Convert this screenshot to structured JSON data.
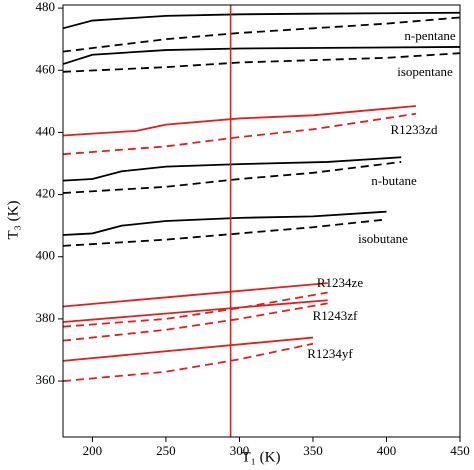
{
  "chart_data": {
    "type": "line",
    "x_label": "T₁ (K)",
    "y_label": "T₃ (K)",
    "xlim": [
      180,
      450
    ],
    "ylim": [
      342,
      481
    ],
    "xticks": [
      200,
      250,
      300,
      350,
      400,
      450
    ],
    "yticks": [
      360,
      380,
      400,
      420,
      440,
      460,
      480
    ],
    "vline": {
      "x": 294,
      "color": "#e02020"
    },
    "series": [
      {
        "name": "n-pentane",
        "color": "#000000",
        "style": "solid",
        "x": [
          180,
          200,
          250,
          300,
          350,
          450
        ],
        "values": [
          473.5,
          476,
          477.5,
          478,
          478.2,
          478.5
        ]
      },
      {
        "color": "#000000",
        "style": "dashed",
        "x": [
          180,
          250,
          300,
          350,
          400,
          450
        ],
        "values": [
          466,
          470,
          472,
          473.5,
          475,
          477
        ]
      },
      {
        "name": "isopentane",
        "color": "#000000",
        "style": "solid",
        "x": [
          180,
          200,
          250,
          300,
          450
        ],
        "values": [
          462,
          465,
          466.5,
          467,
          467.5
        ]
      },
      {
        "color": "#000000",
        "style": "dashed",
        "x": [
          180,
          250,
          300,
          400,
          450
        ],
        "values": [
          459.5,
          461,
          462.5,
          464,
          465.5
        ]
      },
      {
        "name": "R1233zd",
        "color": "#e02020",
        "style": "solid",
        "x": [
          180,
          230,
          250,
          300,
          350,
          420
        ],
        "values": [
          439,
          440.5,
          442.5,
          444.5,
          445.5,
          448.5
        ]
      },
      {
        "color": "#e02020",
        "style": "dashed",
        "x": [
          180,
          250,
          300,
          350,
          420
        ],
        "values": [
          433,
          435.5,
          438.5,
          441,
          446
        ]
      },
      {
        "name": "n-butane",
        "color": "#000000",
        "style": "solid",
        "x": [
          180,
          200,
          220,
          250,
          300,
          360,
          410
        ],
        "values": [
          424.5,
          425,
          427.5,
          429,
          429.8,
          430.5,
          432
        ]
      },
      {
        "color": "#000000",
        "style": "dashed",
        "x": [
          180,
          250,
          300,
          350,
          410
        ],
        "values": [
          420.5,
          422.5,
          425,
          427,
          430.5
        ]
      },
      {
        "name": "isobutane",
        "color": "#000000",
        "style": "solid",
        "x": [
          180,
          200,
          220,
          250,
          300,
          350,
          400
        ],
        "values": [
          407,
          407.5,
          410,
          411.5,
          412.5,
          413,
          414.5
        ]
      },
      {
        "color": "#000000",
        "style": "dashed",
        "x": [
          180,
          250,
          300,
          350,
          400
        ],
        "values": [
          403.5,
          405.5,
          407.5,
          409.5,
          412
        ]
      },
      {
        "name": "R1234ze",
        "color": "#e02020",
        "style": "solid",
        "x": [
          180,
          360
        ],
        "values": [
          384,
          391.5
        ]
      },
      {
        "color": "#e02020",
        "style": "dashed",
        "x": [
          180,
          250,
          300,
          360
        ],
        "values": [
          377.5,
          380,
          383.5,
          388.5
        ]
      },
      {
        "name": "R1243zf",
        "color": "#e02020",
        "style": "solid",
        "x": [
          180,
          360
        ],
        "values": [
          379,
          386
        ]
      },
      {
        "color": "#e02020",
        "style": "dashed",
        "x": [
          180,
          250,
          300,
          360
        ],
        "values": [
          373,
          376.5,
          380,
          385
        ]
      },
      {
        "name": "R1234yf",
        "color": "#e02020",
        "style": "solid",
        "x": [
          180,
          350
        ],
        "values": [
          366.5,
          374
        ]
      },
      {
        "color": "#e02020",
        "style": "dashed",
        "x": [
          180,
          250,
          300,
          350
        ],
        "values": [
          360,
          363,
          367,
          372
        ]
      }
    ]
  }
}
